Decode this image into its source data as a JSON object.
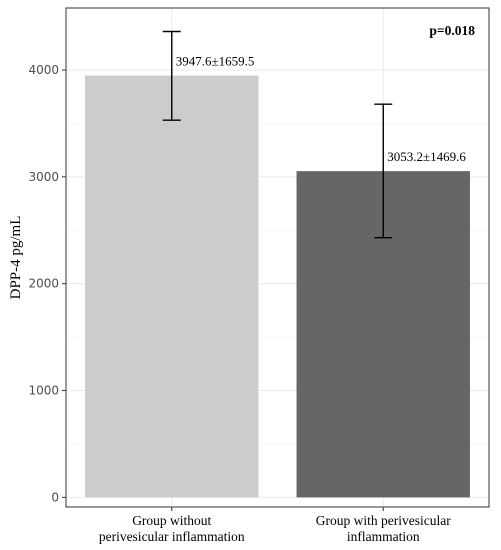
{
  "chart_data": {
    "type": "bar",
    "title": "",
    "xlabel": "",
    "ylabel": "DPP-4 pg/mL",
    "categories": [
      [
        "Group without",
        "perivesicular inflammation"
      ],
      [
        "Group with perivesicular",
        "inflammation"
      ]
    ],
    "values": [
      3947.6,
      3053.2
    ],
    "error_bars": [
      {
        "low": 3530,
        "high": 4360
      },
      {
        "low": 2430,
        "high": 3680
      }
    ],
    "data_labels": [
      "3947.6±1659.5",
      "3053.2±1469.6"
    ],
    "bar_colors": [
      "#cccccc",
      "#666666"
    ],
    "ylim": [
      -90,
      4580
    ],
    "yticks": [
      0,
      1000,
      2000,
      3000,
      4000
    ],
    "grid": true,
    "annotation": "p=0.018"
  }
}
